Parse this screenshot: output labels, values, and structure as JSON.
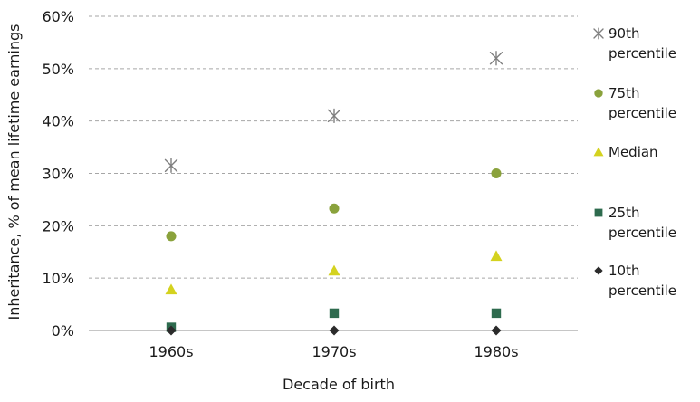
{
  "chart_data": {
    "type": "scatter",
    "categories": [
      "1960s",
      "1970s",
      "1980s"
    ],
    "xlabel": "Decade of birth",
    "ylabel": "Inheritance, % of mean lifetime earnings",
    "ylim": [
      0,
      60
    ],
    "yticks": [
      "0%",
      "10%",
      "20%",
      "30%",
      "40%",
      "50%",
      "60%"
    ],
    "grid": "horizontal-dashed",
    "legend_position": "right",
    "series": [
      {
        "name": [
          "90th",
          "percentile"
        ],
        "marker": "asterisk",
        "color": "#7f7f7f",
        "values": [
          31.5,
          41,
          52
        ]
      },
      {
        "name": [
          "75th",
          "percentile"
        ],
        "marker": "circle",
        "color": "#8aa23c",
        "values": [
          18,
          23.3,
          30
        ]
      },
      {
        "name": [
          "Median"
        ],
        "marker": "triangle",
        "color": "#d4d21f",
        "values": [
          7.8,
          11.4,
          14.2
        ]
      },
      {
        "name": [
          "25th",
          "percentile"
        ],
        "marker": "square",
        "color": "#2e6b4e",
        "values": [
          0.6,
          3.3,
          3.3
        ]
      },
      {
        "name": [
          "10th",
          "percentile"
        ],
        "marker": "diamond",
        "color": "#2b2b2b",
        "values": [
          0,
          0,
          0
        ]
      }
    ]
  }
}
